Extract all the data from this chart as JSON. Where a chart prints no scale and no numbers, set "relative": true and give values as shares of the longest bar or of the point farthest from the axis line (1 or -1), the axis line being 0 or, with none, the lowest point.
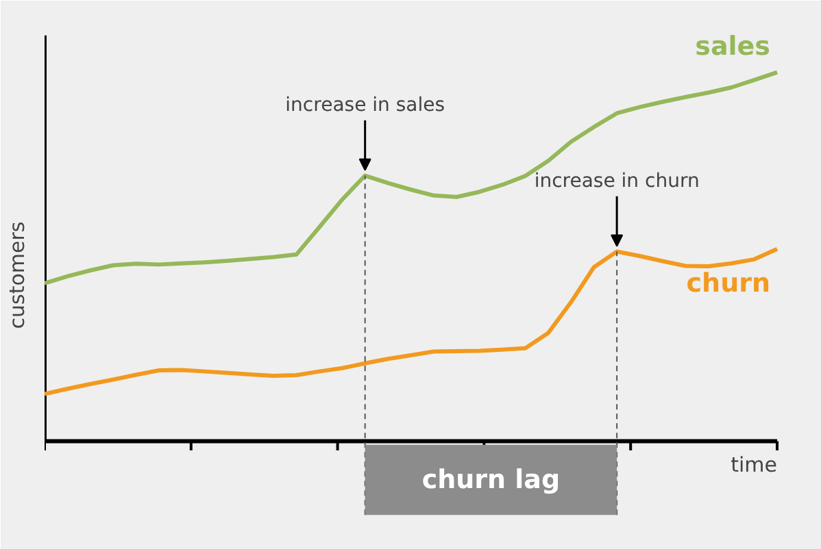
{
  "chart_data": {
    "type": "line",
    "relative": true,
    "xlabel": "time",
    "ylabel": "customers",
    "categories": [
      null,
      null,
      null,
      null,
      null,
      null,
      null,
      null,
      null,
      null,
      null,
      null,
      null,
      null,
      null,
      null,
      null,
      null,
      null,
      null,
      null,
      null,
      null,
      null,
      null,
      null,
      null,
      null,
      null,
      null,
      null,
      null,
      null
    ],
    "series": [
      {
        "name": "sales",
        "color": "#95b85a",
        "values": [
          0.428,
          0.447,
          0.463,
          0.477,
          0.481,
          0.479,
          0.482,
          0.485,
          0.489,
          0.494,
          0.499,
          0.506,
          0.58,
          0.655,
          0.72,
          0.7,
          0.682,
          0.666,
          0.662,
          0.676,
          0.695,
          0.719,
          0.76,
          0.812,
          0.852,
          0.889,
          0.906,
          0.92,
          0.933,
          0.945,
          0.959,
          0.979,
          1
        ]
      },
      {
        "name": "churn",
        "color": "#f29a1f",
        "values": [
          0.128,
          0.142,
          0.155,
          0.167,
          0.18,
          0.192,
          0.193,
          0.189,
          0.185,
          0.181,
          0.177,
          0.179,
          0.189,
          0.198,
          0.211,
          0.223,
          0.233,
          0.243,
          0.244,
          0.245,
          0.248,
          0.252,
          0.293,
          0.377,
          0.472,
          0.514,
          0.502,
          0.488,
          0.475,
          0.474,
          0.482,
          0.493,
          0.521
        ]
      }
    ],
    "annotations": [
      {
        "text": "increase in sales",
        "y": 0.72
      },
      {
        "text": "increase in churn",
        "y": 0.514
      },
      "churn lag"
    ]
  }
}
